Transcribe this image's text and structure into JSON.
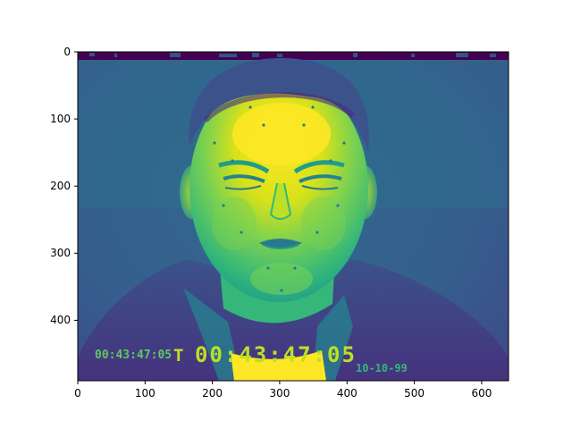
{
  "colors": {
    "viridis_dark": "#440154",
    "viridis_blue": "#3b528b",
    "viridis_teal": "#21918c",
    "viridis_green": "#5ec962",
    "viridis_yellow": "#fde725",
    "axis": "#000000"
  },
  "image": {
    "colormap": "viridis",
    "subject": "grayscale face video frame shown with viridis colormap"
  },
  "axes": {
    "x_ticks": [
      "0",
      "100",
      "200",
      "300",
      "400",
      "500",
      "600"
    ],
    "y_ticks": [
      "0",
      "100",
      "200",
      "300",
      "400"
    ],
    "xlim": [
      0,
      640
    ],
    "ylim": [
      490,
      0
    ]
  },
  "overlay": {
    "timecode_small": "00:43:47:05",
    "timecode_marker": "T",
    "timecode_large": "00:43:47:05",
    "date": "10-10-99"
  }
}
